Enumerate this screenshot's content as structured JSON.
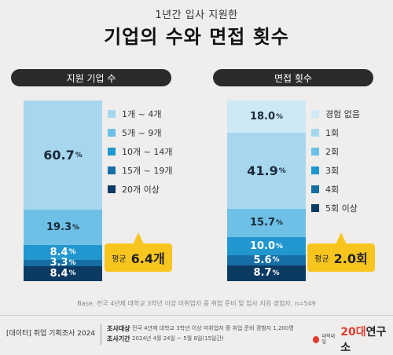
{
  "header": {
    "subtitle": "1년간 입사 지원한",
    "title": "기업의 수와 면접 횟수"
  },
  "chart_data": [
    {
      "type": "bar",
      "title": "지원 기업 수",
      "series": [
        {
          "name": "1개 ~ 4개",
          "value": 60.7,
          "color": "#a7d7ee",
          "label": "60.7",
          "text_color": "#1a2a3a"
        },
        {
          "name": "5개 ~ 9개",
          "value": 19.3,
          "color": "#6fc0e6",
          "label": "19.3",
          "text_color": "#1a2a3a"
        },
        {
          "name": "10개 ~ 14개",
          "value": 8.4,
          "color": "#2196cf",
          "label": "8.4",
          "text_color": "#ffffff"
        },
        {
          "name": "15개 ~ 19개",
          "value": 3.3,
          "color": "#166ea5",
          "label": "3.3",
          "text_color": "#ffffff"
        },
        {
          "name": "20개 이상",
          "value": 8.4,
          "color": "#0b3a63",
          "label": "8.4",
          "text_color": "#ffffff"
        }
      ],
      "unit": "%",
      "average": {
        "label": "평균",
        "value": "6.4개"
      }
    },
    {
      "type": "bar",
      "title": "면접 횟수",
      "series": [
        {
          "name": "경험 없음",
          "value": 18.0,
          "color": "#cde9f5",
          "label": "18.0",
          "text_color": "#1a2a3a"
        },
        {
          "name": "1회",
          "value": 41.9,
          "color": "#a7d7ee",
          "label": "41.9",
          "text_color": "#1a2a3a"
        },
        {
          "name": "2회",
          "value": 15.7,
          "color": "#6fc0e6",
          "label": "15.7",
          "text_color": "#1a2a3a"
        },
        {
          "name": "3회",
          "value": 10.0,
          "color": "#2196cf",
          "label": "10.0",
          "text_color": "#ffffff"
        },
        {
          "name": "4회",
          "value": 5.6,
          "color": "#166ea5",
          "label": "5.6",
          "text_color": "#ffffff"
        },
        {
          "name": "5회 이상",
          "value": 8.7,
          "color": "#0b3a63",
          "label": "8.7",
          "text_color": "#ffffff"
        }
      ],
      "unit": "%",
      "average": {
        "label": "평균",
        "value": "2.0회"
      }
    }
  ],
  "base_note": "Base: 전국 4년제 대학교 3학년 이상 미취업자 중 취업 준비 및 입사 지원 경험자, n=549",
  "footer": {
    "tag": "[데이터] 취업 기획조사 2024",
    "survey_target_label": "조사대상",
    "survey_target_value": "전국 4년제 대학교 3학년 이상 미취업자 중 취업 준비 경험자 1,200명",
    "survey_period_label": "조사기간",
    "survey_period_value": "2024년 4월 24일 ~ 5월 8일(15일간)",
    "logo_small_1": "대학내일",
    "logo_small_2": "",
    "logo_main_num": "20대",
    "logo_main_rest": "연구소"
  }
}
